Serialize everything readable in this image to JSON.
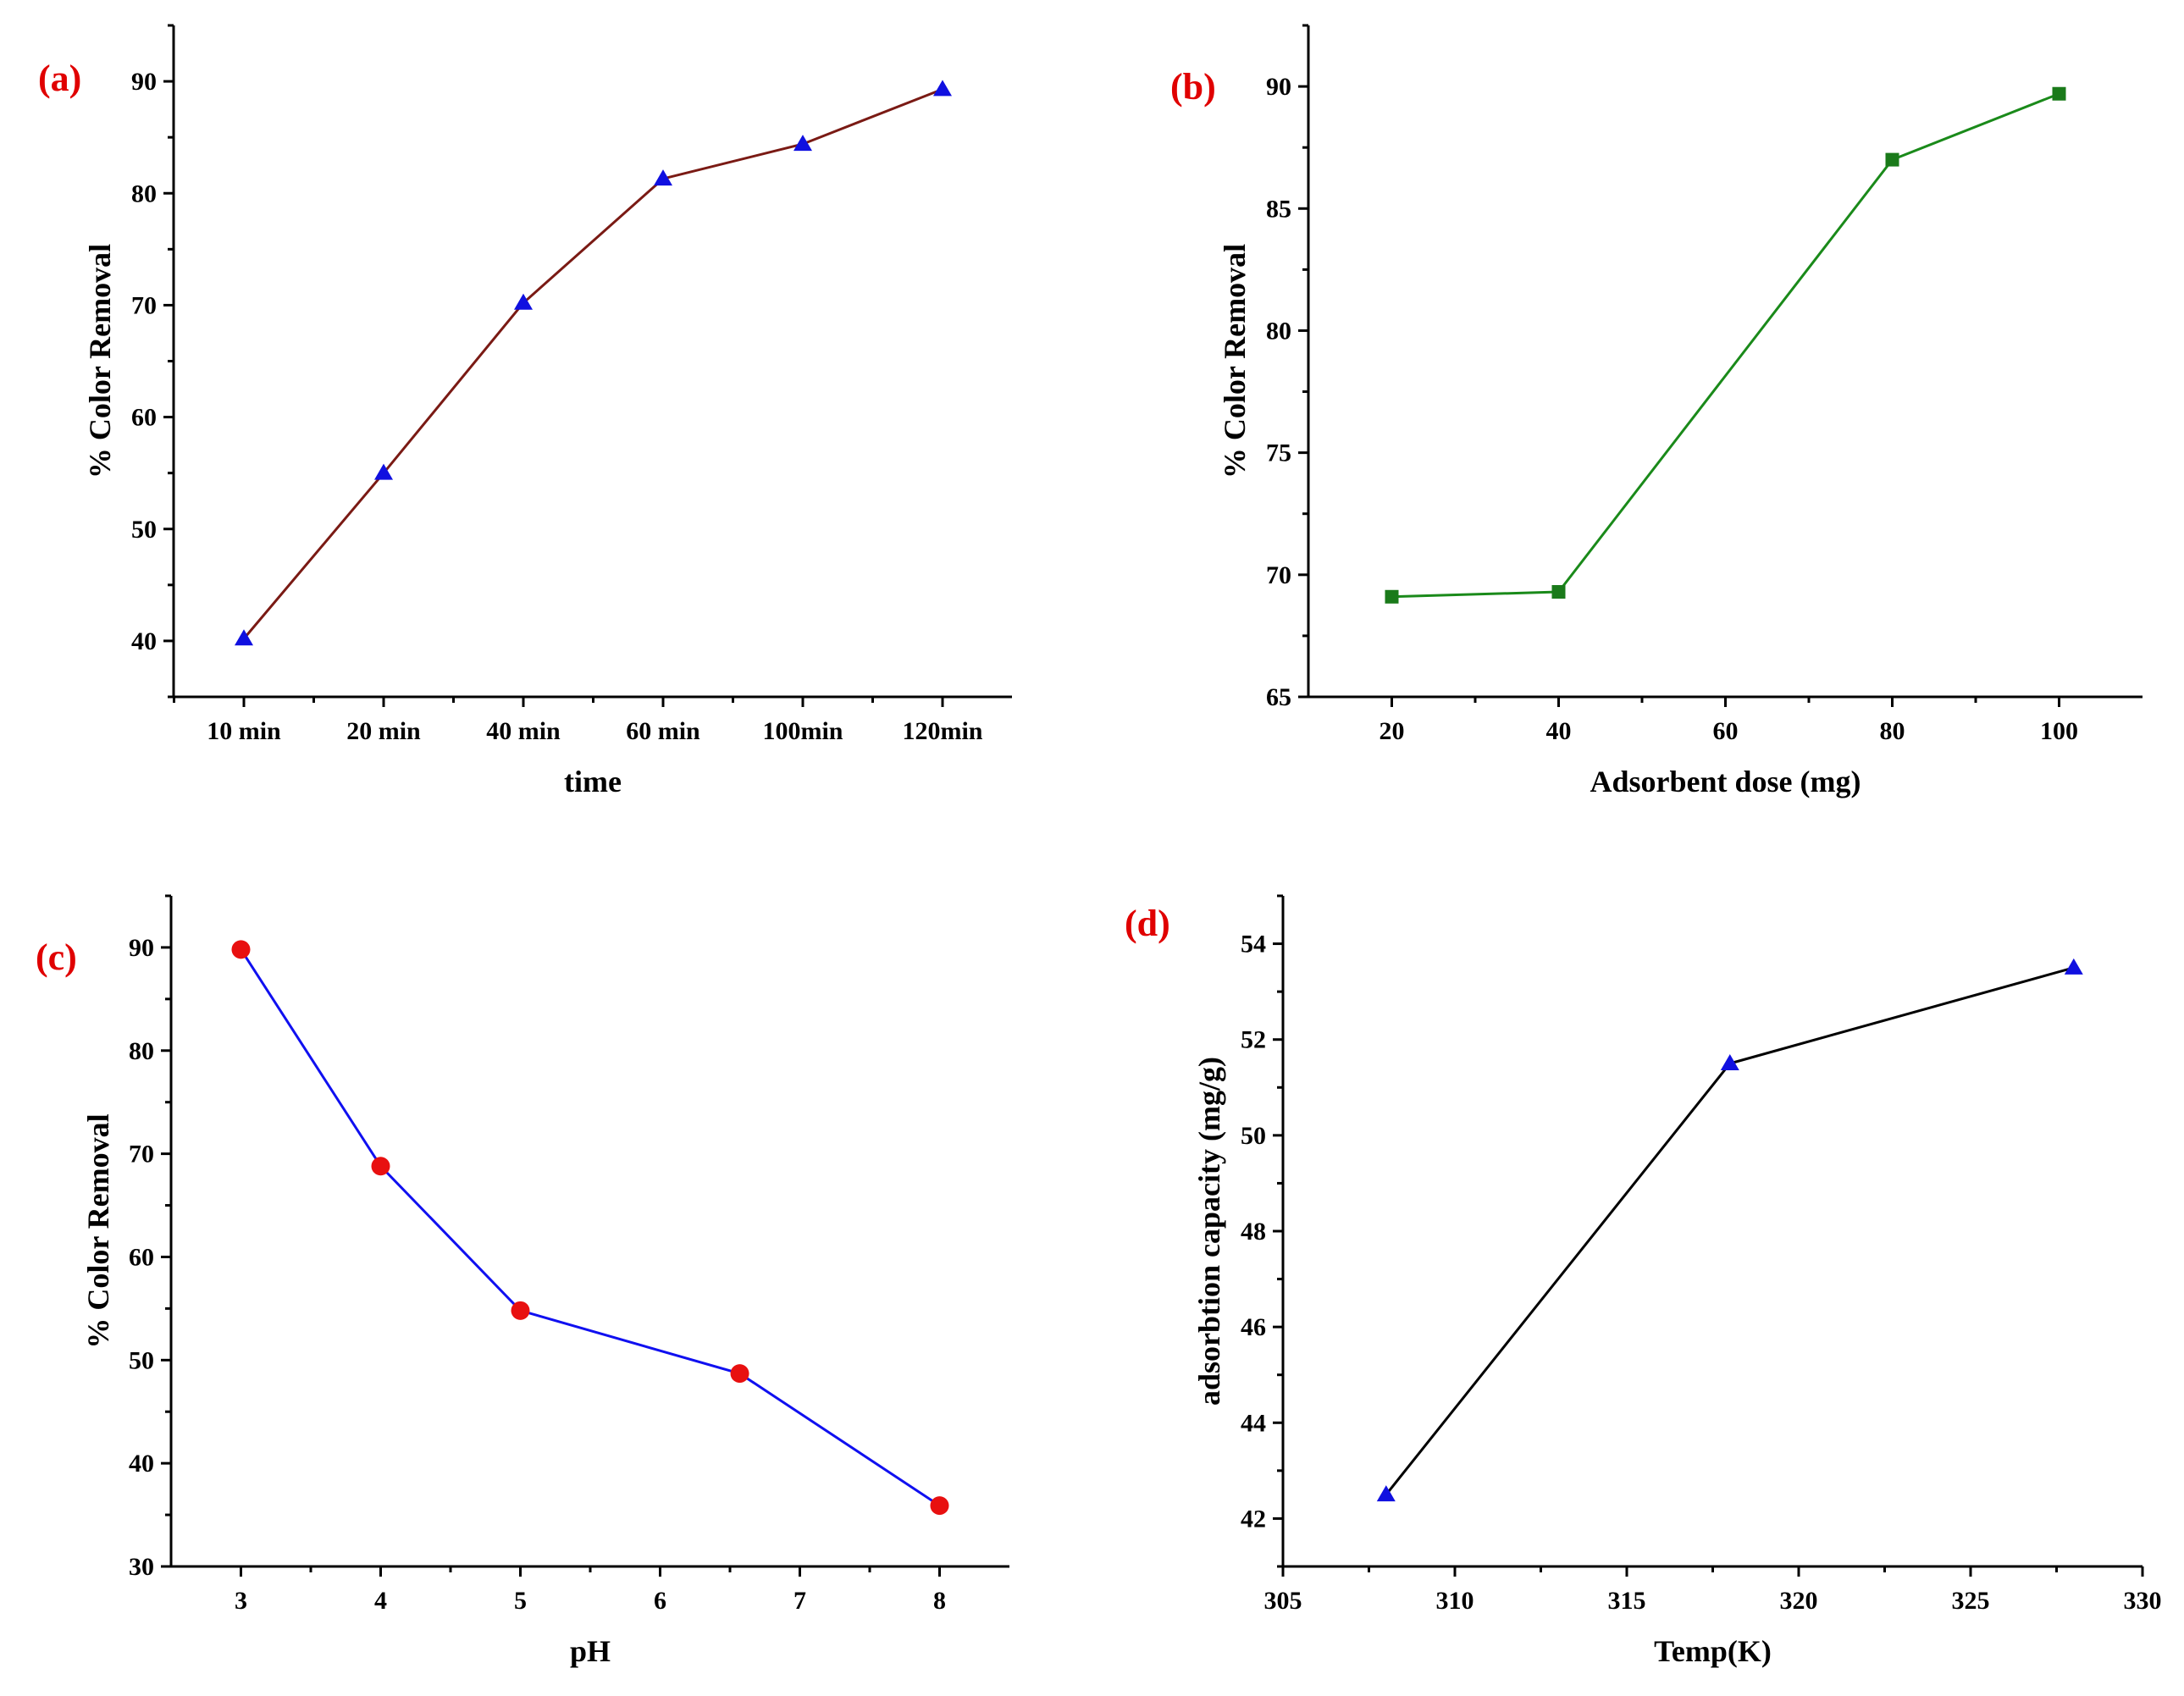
{
  "chart_data": [
    {
      "id": "a",
      "type": "line",
      "panel_label": "(a)",
      "xlabel": "time",
      "ylabel": "% Color Removal",
      "x_scale": "category",
      "categories": [
        "10 min",
        "20 min",
        "40 min",
        "60 min",
        "100min",
        "120min"
      ],
      "values": [
        40.2,
        55.0,
        70.2,
        81.3,
        84.4,
        89.3
      ],
      "ylim": [
        35,
        95
      ],
      "yticks": [
        40,
        50,
        60,
        70,
        80,
        90
      ],
      "line_color": "#7a1a14",
      "marker": "triangle",
      "marker_color": "#1010e0",
      "panel_label_color": "#e00000"
    },
    {
      "id": "b",
      "type": "line",
      "panel_label": "(b)",
      "xlabel": "Adsorbent dose (mg)",
      "ylabel": "% Color Removal",
      "x_scale": "linear",
      "x": [
        20,
        40,
        80,
        100
      ],
      "values": [
        69.1,
        69.3,
        87.0,
        89.7
      ],
      "xlim": [
        10,
        110
      ],
      "xticks": [
        20,
        40,
        60,
        80,
        100
      ],
      "ylim": [
        65,
        92.5
      ],
      "yticks": [
        65,
        70,
        75,
        80,
        85,
        90
      ],
      "line_color": "#1a8a1a",
      "marker": "square",
      "marker_color": "#1a7a1a",
      "panel_label_color": "#e00000"
    },
    {
      "id": "c",
      "type": "line",
      "panel_label": "(c)",
      "xlabel": "pH",
      "ylabel": "% Color Removal",
      "x_scale": "linear",
      "x": [
        3,
        4,
        5,
        6.57,
        8
      ],
      "values": [
        89.8,
        68.8,
        54.8,
        48.7,
        35.9
      ],
      "xlim": [
        2.5,
        8.5
      ],
      "xticks": [
        3,
        4,
        5,
        6,
        7,
        8
      ],
      "ylim": [
        30,
        95
      ],
      "yticks": [
        30,
        40,
        50,
        60,
        70,
        80,
        90
      ],
      "line_color": "#1010f0",
      "marker": "circle",
      "marker_color": "#e81010",
      "panel_label_color": "#e00000"
    },
    {
      "id": "d",
      "type": "line",
      "panel_label": "(d)",
      "xlabel": "Temp(K)",
      "ylabel": "adsorbtion capacity (mg/g)",
      "x_scale": "linear",
      "x": [
        308,
        318,
        328
      ],
      "values": [
        42.5,
        51.5,
        53.5
      ],
      "xlim": [
        305,
        330
      ],
      "xticks": [
        305,
        310,
        315,
        320,
        325,
        330
      ],
      "ylim": [
        41,
        55
      ],
      "yticks": [
        42,
        44,
        46,
        48,
        50,
        52,
        54
      ],
      "line_color": "#000000",
      "marker": "triangle",
      "marker_color": "#1010e0",
      "panel_label_color": "#e00000"
    }
  ]
}
